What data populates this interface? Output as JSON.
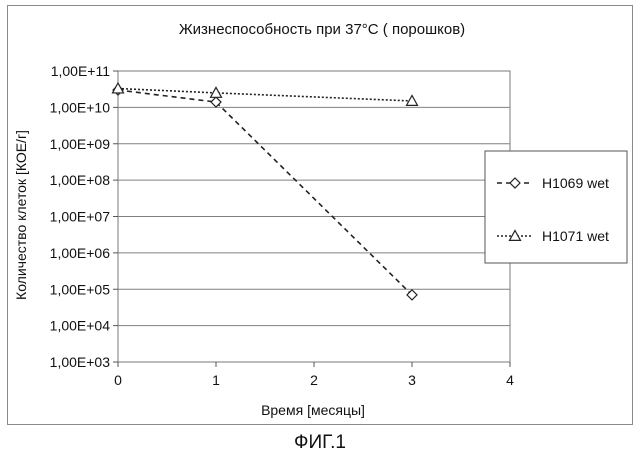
{
  "chart_data": {
    "type": "line",
    "title": "Жизнеспособность при 37°С  ( порошков)",
    "xlabel": "Время [месяцы]",
    "ylabel": "Количество клеток [КОЕ/г]",
    "y_scale": "log",
    "xlim": [
      0,
      4
    ],
    "ylim": [
      1000,
      100000000000
    ],
    "x_ticks": [
      "0",
      "1",
      "2",
      "3",
      "4"
    ],
    "y_ticks": [
      "1,00E+11",
      "1,00E+10",
      "1,00E+09",
      "1,00E+08",
      "1,00E+07",
      "1,00E+06",
      "1,00E+05",
      "1,00E+04",
      "1,00E+03"
    ],
    "grid": "horizontal",
    "legend_position": "right",
    "series": [
      {
        "name": "H1069 wet",
        "marker": "diamond",
        "line_style": "dashed",
        "x": [
          0,
          1,
          3
        ],
        "y": [
          30000000000,
          14000000000,
          70000
        ]
      },
      {
        "name": "H1071 wet",
        "marker": "triangle",
        "line_style": "dotted",
        "x": [
          0,
          1,
          3
        ],
        "y": [
          33000000000,
          25000000000,
          15000000000
        ]
      }
    ]
  },
  "figure_caption": "ФИГ.1"
}
